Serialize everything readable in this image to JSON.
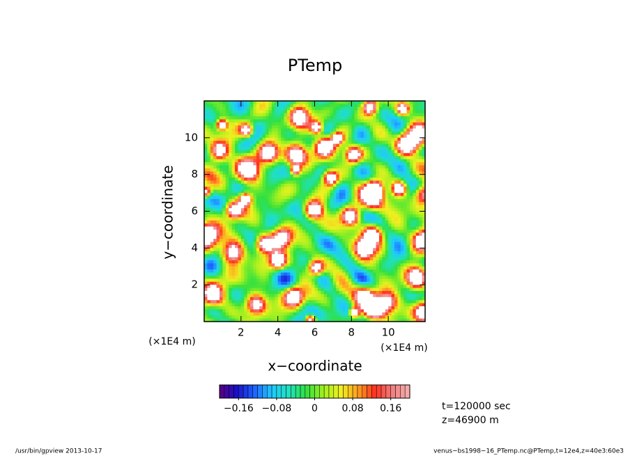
{
  "chart_data": {
    "type": "contour",
    "title": "PTemp",
    "x_label": "x−coordinate",
    "y_label": "y−coordinate",
    "x_unit": "(×1E4 m)",
    "y_unit": "(×1E4 m)",
    "xlim": [
      0,
      12
    ],
    "ylim": [
      0,
      12
    ],
    "xticks": [
      2,
      4,
      6,
      8,
      10
    ],
    "yticks": [
      2,
      4,
      6,
      8,
      10
    ],
    "colorbar": {
      "lim": [
        -0.2,
        0.2
      ],
      "ticks": [
        {
          "value": -0.16,
          "label": "−0.16"
        },
        {
          "value": -0.08,
          "label": "−0.08"
        },
        0,
        0.08,
        0.16
      ],
      "colormap": [
        "#5a0080",
        "#1a10c8",
        "#1e60ff",
        "#20c8ff",
        "#20e0c0",
        "#30e040",
        "#a0f020",
        "#f0f020",
        "#ffa020",
        "#ff3020",
        "#f08080",
        "#f8b0b0"
      ]
    },
    "annotations": [
      "t=120000 sec",
      "z=46900 m"
    ],
    "footer_left": "/usr/bin/gpview   2013-10-17",
    "footer_right": "venus−bs1998−16_PTemp.nc@PTemp,t=12e4,z=40e3:60e3"
  }
}
